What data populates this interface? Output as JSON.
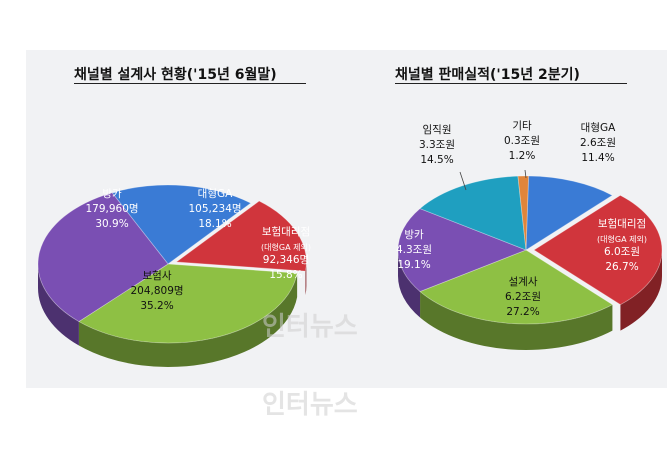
{
  "chart_data": [
    {
      "type": "pie",
      "title": "채널별 설계사 현황('15년 6월말)",
      "slices": [
        {
          "name": "대형GA",
          "value_label": "105,234명",
          "value": 105234,
          "pct": 18.1,
          "pct_label": "18.1%",
          "color": "#3a7bd5"
        },
        {
          "name": "보험대리점",
          "note": "(대형GA 제외)",
          "value_label": "92,346명",
          "value": 92346,
          "pct": 15.8,
          "pct_label": "15.8%",
          "color": "#d0353c"
        },
        {
          "name": "보험사",
          "value_label": "204,809명",
          "value": 204809,
          "pct": 35.2,
          "pct_label": "35.2%",
          "color": "#8ec044"
        },
        {
          "name": "방카",
          "value_label": "179,960명",
          "value": 179960,
          "pct": 30.9,
          "pct_label": "30.9%",
          "color": "#7a4fb3"
        }
      ]
    },
    {
      "type": "pie",
      "title": "채널별 판매실적('15년 2분기)",
      "slices": [
        {
          "name": "대형GA",
          "value_label": "2.6조원",
          "value": 2.6,
          "pct": 11.4,
          "pct_label": "11.4%",
          "color": "#3a7bd5"
        },
        {
          "name": "보험대리점",
          "note": "(대형GA 제외)",
          "value_label": "6.0조원",
          "value": 6.0,
          "pct": 26.7,
          "pct_label": "26.7%",
          "color": "#d0353c"
        },
        {
          "name": "설계사",
          "value_label": "6.2조원",
          "value": 6.2,
          "pct": 27.2,
          "pct_label": "27.2%",
          "color": "#8ec044"
        },
        {
          "name": "방카",
          "value_label": "4.3조원",
          "value": 4.3,
          "pct": 19.1,
          "pct_label": "19.1%",
          "color": "#7a4fb3"
        },
        {
          "name": "임직원",
          "value_label": "3.3조원",
          "value": 3.3,
          "pct": 14.5,
          "pct_label": "14.5%",
          "color": "#1f9fc0"
        },
        {
          "name": "기타",
          "value_label": "0.3조원",
          "value": 0.3,
          "pct": 1.2,
          "pct_label": "1.2%",
          "color": "#e0853a"
        }
      ]
    }
  ],
  "watermark": "인터뉴스"
}
